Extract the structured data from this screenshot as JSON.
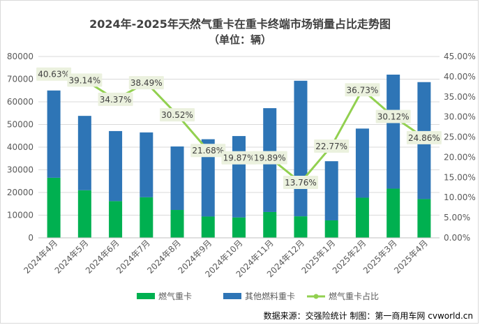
{
  "chart_data": {
    "type": "bar",
    "title": "2024年-2025年天然气重卡在重卡终端市场销量占比走势图",
    "subtitle": "（单位：辆）",
    "categories": [
      "2024年4月",
      "2024年5月",
      "2024年6月",
      "2024年7月",
      "2024年8月",
      "2024年9月",
      "2024年10月",
      "2024年11月",
      "2024年12月",
      "2025年1月",
      "2025年2月",
      "2025年3月",
      "2025年4月"
    ],
    "series": [
      {
        "name": "燃气重卡",
        "type": "bar",
        "stack": "total",
        "color": "#00b050",
        "values": [
          26500,
          21000,
          16200,
          17900,
          12300,
          9400,
          9000,
          11400,
          9500,
          7700,
          17700,
          21700,
          17100
        ]
      },
      {
        "name": "其他燃料重卡",
        "type": "bar",
        "stack": "total",
        "color": "#2e75b6",
        "values": [
          38500,
          32800,
          30900,
          28600,
          28000,
          34100,
          35900,
          45800,
          59800,
          26100,
          30500,
          50300,
          51600
        ]
      },
      {
        "name": "燃气重卡占比",
        "type": "line",
        "axis": "right",
        "color": "#92d050",
        "values": [
          40.63,
          39.14,
          34.37,
          38.49,
          30.52,
          21.68,
          19.87,
          19.89,
          13.76,
          22.77,
          36.73,
          30.12,
          24.86
        ],
        "labels": [
          "40.63%",
          "39.14%",
          "34.37%",
          "38.49%",
          "30.52%",
          "21.68%",
          "19.87%",
          "19.89%",
          "13.76%",
          "22.77%",
          "36.73%",
          "30.12%",
          "24.86%"
        ]
      }
    ],
    "y_left": {
      "ylim": [
        0,
        80000
      ],
      "ticks": [
        "0",
        "10000",
        "20000",
        "30000",
        "40000",
        "50000",
        "60000",
        "70000",
        "80000"
      ]
    },
    "y_right": {
      "ylim": [
        0,
        45
      ],
      "ticks": [
        "0.00%",
        "5.00%",
        "10.00%",
        "15.00%",
        "20.00%",
        "25.00%",
        "30.00%",
        "35.00%",
        "40.00%",
        "45.00%"
      ]
    },
    "grid": true,
    "legend": "bottom"
  },
  "footer": {
    "source": "数据来源：交强险统计 制图：第一商用车网 cvworld.cn"
  }
}
